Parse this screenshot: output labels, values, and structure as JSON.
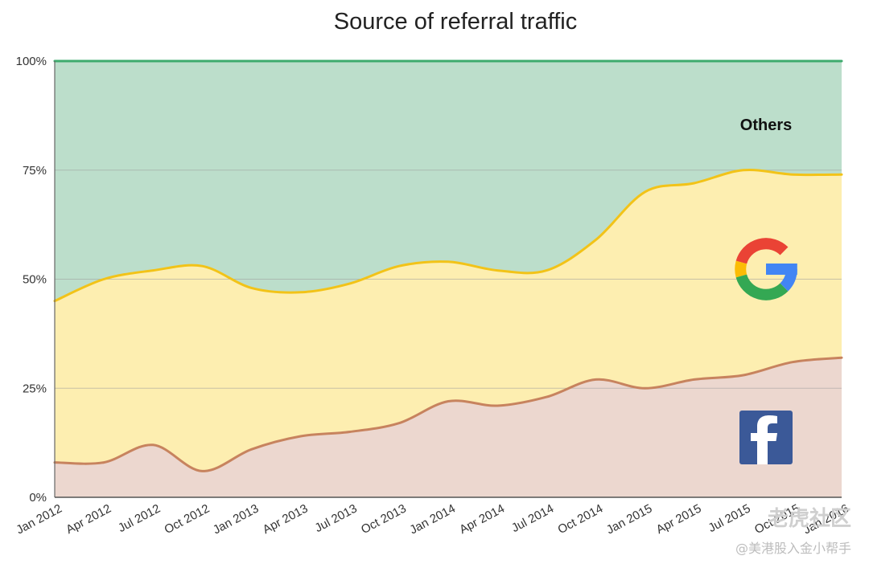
{
  "chart_data": {
    "type": "area",
    "stacked": true,
    "normalized": true,
    "title": "Source of referral traffic",
    "xlabel": "",
    "ylabel": "",
    "ylim": [
      0,
      100
    ],
    "y_ticks": [
      "0%",
      "25%",
      "50%",
      "75%",
      "100%"
    ],
    "y_tick_values": [
      0,
      25,
      50,
      75,
      100
    ],
    "categories": [
      "Jan 2012",
      "Apr 2012",
      "Jul 2012",
      "Oct 2012",
      "Jan 2013",
      "Apr 2013",
      "Jul 2013",
      "Oct 2013",
      "Jan 2014",
      "Apr 2014",
      "Jul 2014",
      "Oct 2014",
      "Jan 2015",
      "Apr 2015",
      "Jul 2015",
      "Oct 2015",
      "Jan 2016"
    ],
    "grid": true,
    "series": [
      {
        "key": "facebook",
        "icon": "facebook-logo-icon",
        "color": "#c7835e",
        "fill": "#ecd7cf",
        "values": [
          8,
          8,
          12,
          6,
          11,
          14,
          15,
          17,
          22,
          21,
          23,
          27,
          25,
          27,
          28,
          31,
          32
        ]
      },
      {
        "key": "google",
        "icon": "google-logo-icon",
        "color": "#f2c318",
        "fill": "#fdeeb0",
        "values": [
          37,
          42,
          40,
          47,
          37,
          33,
          34,
          36,
          32,
          31,
          29,
          32,
          45,
          45,
          47,
          43,
          42
        ]
      },
      {
        "name": "Others",
        "color": "#3eab6e",
        "fill": "#bcdecb",
        "values": [
          55,
          50,
          48,
          47,
          52,
          53,
          51,
          47,
          46,
          48,
          48,
          41,
          30,
          28,
          25,
          26,
          26
        ]
      }
    ],
    "annotations": [
      {
        "text": "Others"
      }
    ]
  },
  "watermark": {
    "line1": "老虎社区",
    "line2": "@美港股入金小帮手"
  }
}
